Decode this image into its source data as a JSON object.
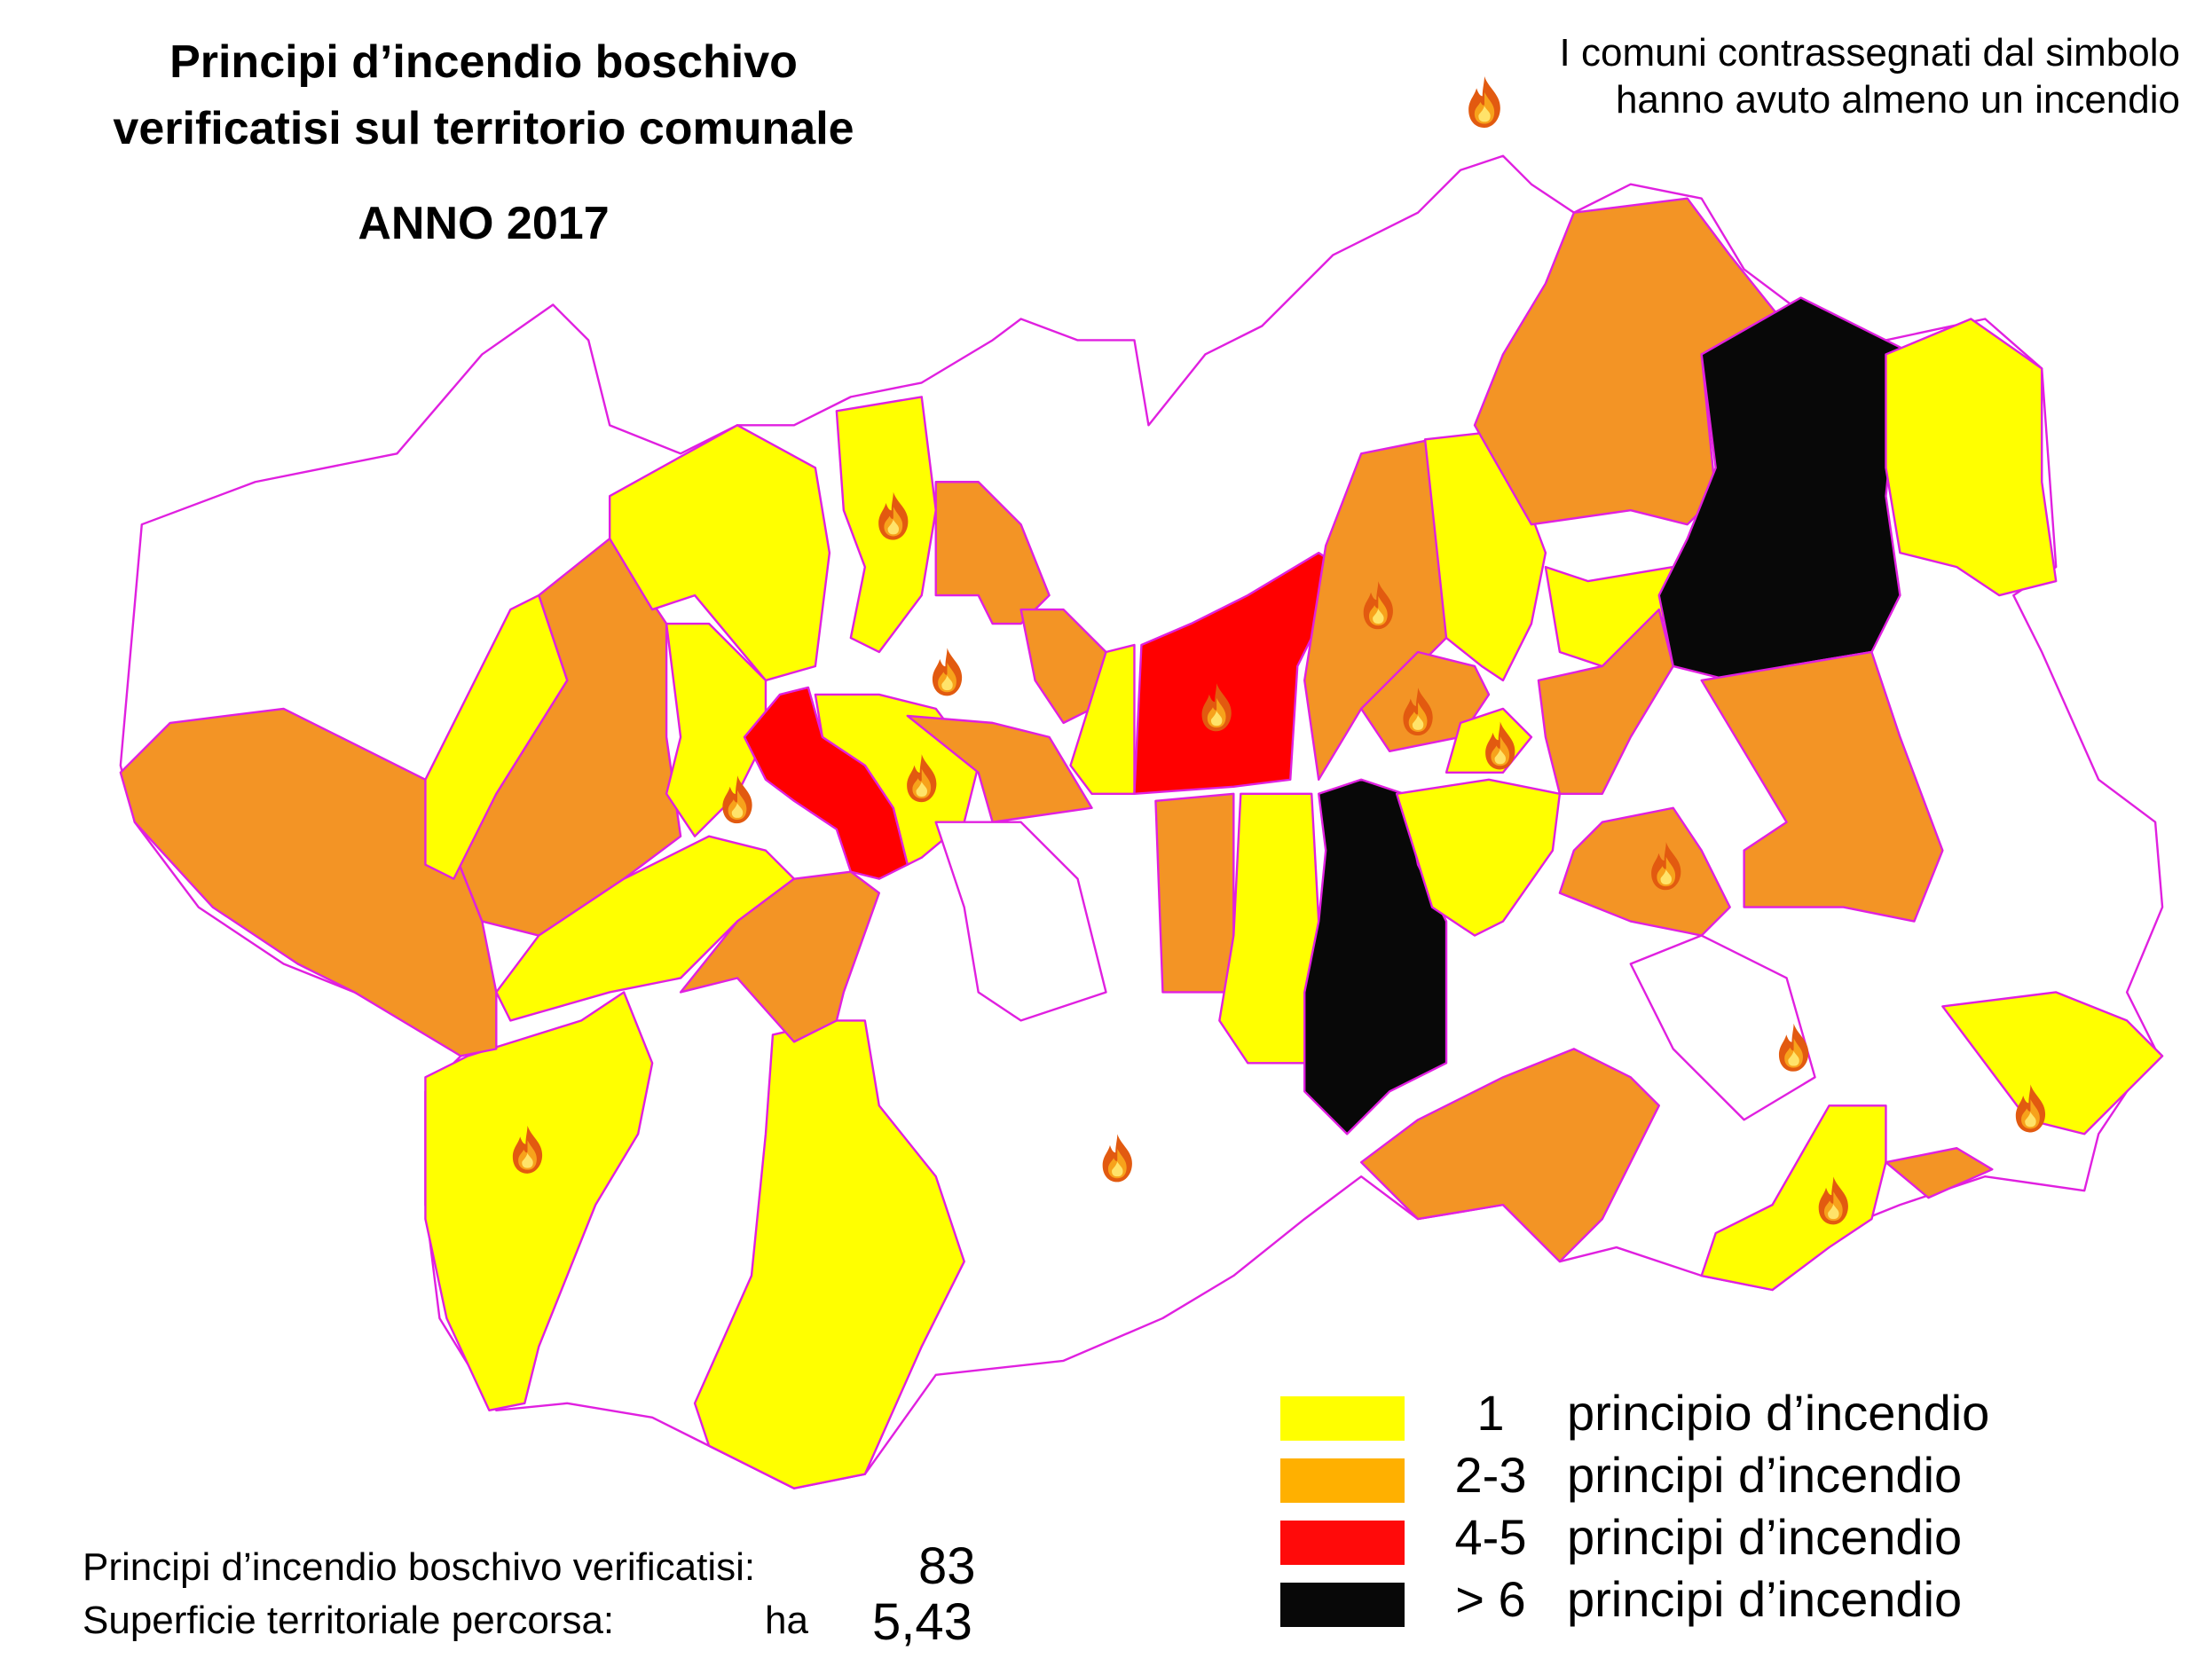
{
  "title": {
    "line1": "Principi d’incendio boschivo",
    "line2": "verificatisi sul territorio comunale",
    "year": "ANNO  2017"
  },
  "note": {
    "line1": "I comuni contrassegnati dal simbolo",
    "line2": "hanno avuto almeno un incendio",
    "icon": "fire-icon"
  },
  "legend": [
    {
      "range": "1",
      "label": "principio d’incendio",
      "color": "#ffff00"
    },
    {
      "range": "2-3",
      "label": "principi d’incendio",
      "color": "#ffb000"
    },
    {
      "range": "4-5",
      "label": "principi d’incendio",
      "color": "#ff0a0a"
    },
    {
      "range": "> 6",
      "label": "principi d’incendio",
      "color": "#080808"
    }
  ],
  "map_colors": {
    "one": "#ffff00",
    "two_three": "#f39425",
    "four_five": "#ff0000",
    "over_six": "#080808",
    "none": "#ffffff",
    "border": "#e020e0"
  },
  "stats": {
    "fires_label": "Principi d’incendio boschivo verificatisi:",
    "fires_value": "83",
    "area_label": "Superficie territoriale percorsa:",
    "area_unit": "ha",
    "area_value": "5,43"
  }
}
